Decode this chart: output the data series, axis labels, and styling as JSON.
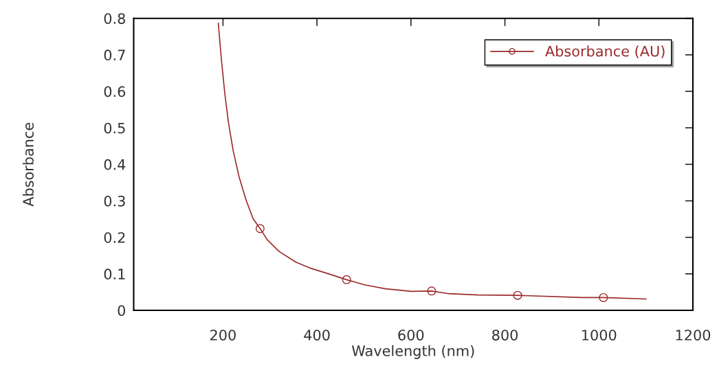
{
  "chart_data": {
    "type": "line",
    "xlabel": "Wavelength (nm)",
    "ylabel": "Absorbance",
    "xlim": [
      10,
      1200
    ],
    "xticks": [
      200,
      400,
      600,
      800,
      1000,
      1200
    ],
    "ylim": [
      0,
      0.8
    ],
    "yticks": [
      0,
      0.1,
      0.2,
      0.3,
      0.4,
      0.5,
      0.6,
      0.7,
      0.8
    ],
    "grid": false,
    "legend": "top right",
    "series": [
      {
        "name": "Absorbance (AU)",
        "marker": "none",
        "color": "#9b2a2a",
        "x": [
          190,
          196.5,
          204,
          211.6,
          221.6,
          234,
          249,
          264,
          279,
          294.5,
          319.6,
          355,
          385,
          425,
          463,
          500.5,
          546,
          601,
          644,
          678,
          743.6,
          827,
          965,
          1009.6,
          1101
        ],
        "values": [
          0.787,
          0.689,
          0.593,
          0.515,
          0.438,
          0.367,
          0.303,
          0.251,
          0.224,
          0.193,
          0.161,
          0.132,
          0.116,
          0.1,
          0.084,
          0.07,
          0.059,
          0.052,
          0.053,
          0.046,
          0.042,
          0.041,
          0.035,
          0.035,
          0.031
        ]
      },
      {
        "type": "scatter",
        "marker": "circle",
        "color": "#9b2a2a",
        "x": [
          279,
          463,
          644,
          827,
          1009.6
        ],
        "values": [
          0.224,
          0.084,
          0.053,
          0.041,
          0.035
        ]
      }
    ]
  }
}
